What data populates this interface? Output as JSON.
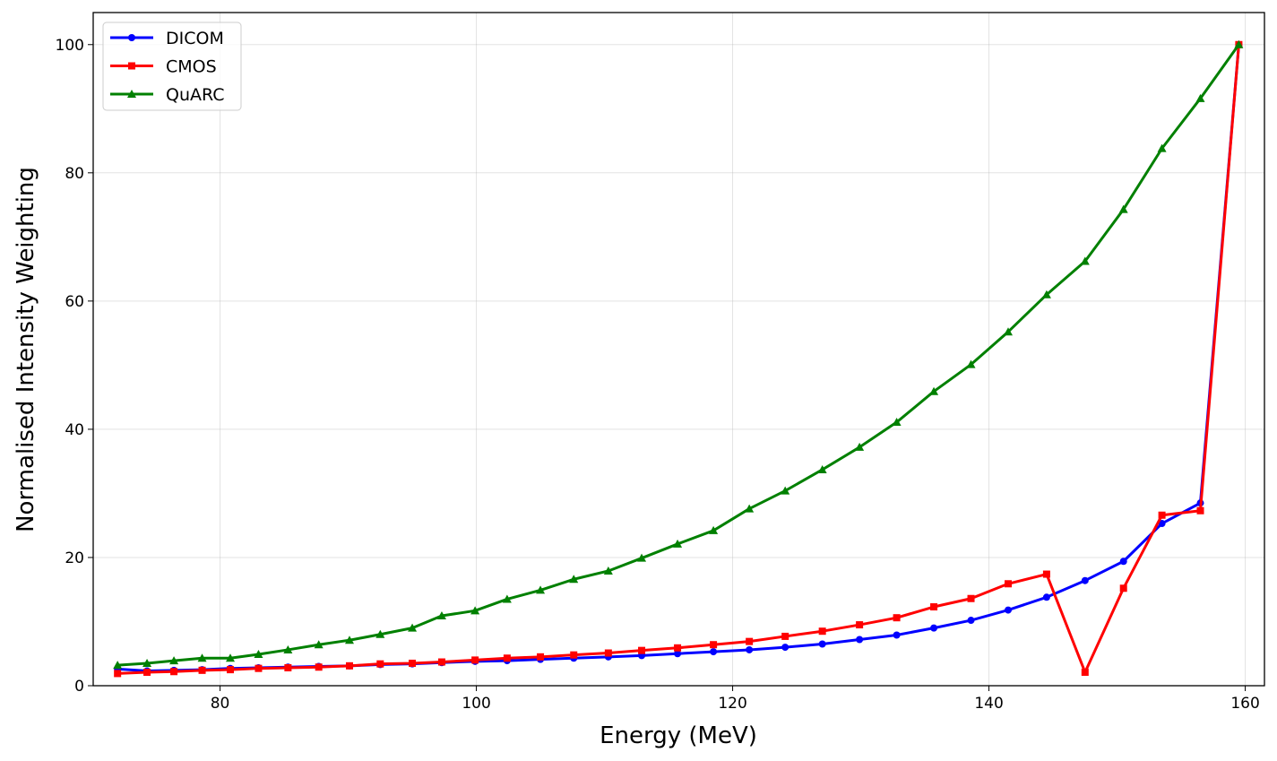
{
  "chart_data": {
    "type": "line",
    "title": "",
    "xlabel": "Energy (MeV)",
    "ylabel": "Normalised Intensity Weighting",
    "xlim": [
      70.1,
      161.5
    ],
    "ylim": [
      0,
      105
    ],
    "xticks": [
      80,
      100,
      120,
      140,
      160
    ],
    "yticks": [
      0,
      20,
      40,
      60,
      80,
      100
    ],
    "grid": true,
    "legend_position": "top-left",
    "x": [
      72.0,
      74.3,
      76.4,
      78.6,
      80.8,
      83.0,
      85.3,
      87.7,
      90.1,
      92.5,
      95.0,
      97.3,
      99.9,
      102.4,
      105.0,
      107.6,
      110.3,
      112.9,
      115.7,
      118.5,
      121.3,
      124.1,
      127.0,
      129.9,
      132.8,
      135.7,
      138.6,
      141.5,
      144.5,
      147.5,
      150.5,
      153.5,
      156.5,
      159.5
    ],
    "series": [
      {
        "name": "DICOM",
        "color": "#0000ff",
        "marker": "circle",
        "values": [
          2.6,
          2.3,
          2.4,
          2.5,
          2.7,
          2.8,
          2.9,
          3.0,
          3.1,
          3.3,
          3.4,
          3.6,
          3.8,
          3.9,
          4.1,
          4.3,
          4.5,
          4.7,
          5.0,
          5.3,
          5.6,
          6.0,
          6.5,
          7.2,
          7.9,
          9.0,
          10.2,
          11.8,
          13.8,
          16.4,
          19.4,
          25.3,
          28.5,
          100
        ]
      },
      {
        "name": "CMOS",
        "color": "#ff0000",
        "marker": "square",
        "values": [
          1.9,
          2.1,
          2.2,
          2.4,
          2.5,
          2.7,
          2.8,
          2.9,
          3.1,
          3.4,
          3.5,
          3.7,
          4.0,
          4.3,
          4.5,
          4.8,
          5.1,
          5.5,
          5.9,
          6.4,
          6.9,
          7.7,
          8.5,
          9.5,
          10.6,
          12.3,
          13.6,
          15.9,
          17.4,
          2.1,
          15.2,
          26.6,
          27.3,
          100
        ]
      },
      {
        "name": "QuARC",
        "color": "#008000",
        "marker": "triangle",
        "values": [
          3.2,
          3.5,
          3.9,
          4.3,
          4.3,
          4.9,
          5.6,
          6.4,
          7.1,
          8.0,
          9.0,
          10.9,
          11.7,
          13.5,
          14.9,
          16.6,
          17.9,
          19.9,
          22.1,
          24.2,
          27.6,
          30.4,
          33.7,
          37.2,
          41.1,
          45.9,
          50.1,
          55.2,
          61.0,
          66.2,
          74.3,
          83.8,
          91.6,
          100
        ]
      }
    ]
  }
}
